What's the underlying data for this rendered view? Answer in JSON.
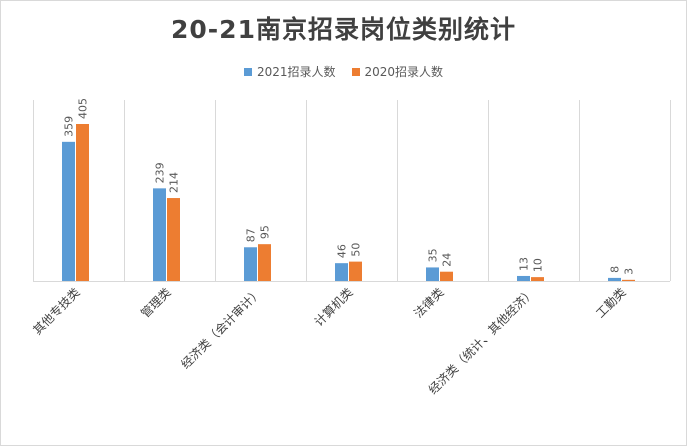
{
  "title": "20-21南京招录岗位类别统计",
  "colors": {
    "series_2021": "#5b9bd5",
    "series_2020": "#ed7d31",
    "gridline": "#d9d9d9"
  },
  "chart_data": {
    "type": "bar",
    "title": "20-21南京招录岗位类别统计",
    "categories": [
      "其他专技类",
      "管理类",
      "经济类（会计审计）",
      "计算机类",
      "法律类",
      "经济类（统计、其他经济）",
      "工勤类"
    ],
    "series": [
      {
        "name": "2021招录人数",
        "values": [
          359,
          239,
          87,
          46,
          35,
          13,
          8
        ]
      },
      {
        "name": "2020招录人数",
        "values": [
          405,
          214,
          95,
          50,
          24,
          10,
          3
        ]
      }
    ],
    "ylim": [
      0,
      450
    ],
    "grid": "vertical category separators",
    "legend": "top-center",
    "data_labels": true
  }
}
